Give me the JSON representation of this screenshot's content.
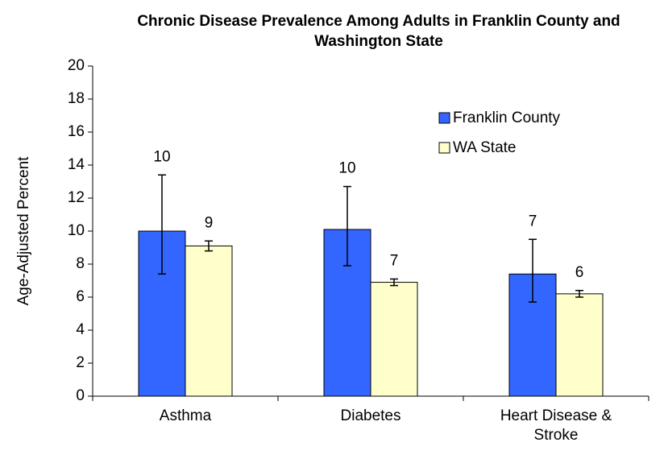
{
  "chart_data": {
    "type": "bar",
    "title": "Chronic Disease Prevalence Among Adults in Franklin County and Washington State",
    "y_label": "Age-Adjusted Percent",
    "categories": [
      "Asthma",
      "Diabetes",
      "Heart Disease & Stroke"
    ],
    "series": [
      {
        "name": "Franklin County",
        "color": "#3366ff",
        "values": [
          10.0,
          10.1,
          7.4
        ],
        "value_labels": [
          "10",
          "10",
          "7"
        ],
        "ci_low": [
          7.4,
          7.9,
          5.7
        ],
        "ci_high": [
          13.4,
          12.7,
          9.5
        ]
      },
      {
        "name": "WA State",
        "color": "#ffffcc",
        "values": [
          9.1,
          6.9,
          6.2
        ],
        "value_labels": [
          "9",
          "7",
          "6"
        ],
        "ci_low": [
          8.8,
          6.7,
          6.0
        ],
        "ci_high": [
          9.4,
          7.1,
          6.4
        ]
      }
    ],
    "ylim": [
      0,
      20
    ],
    "yticks": [
      0,
      2,
      4,
      6,
      8,
      10,
      12,
      14,
      16,
      18,
      20
    ],
    "legend": "upper right"
  }
}
